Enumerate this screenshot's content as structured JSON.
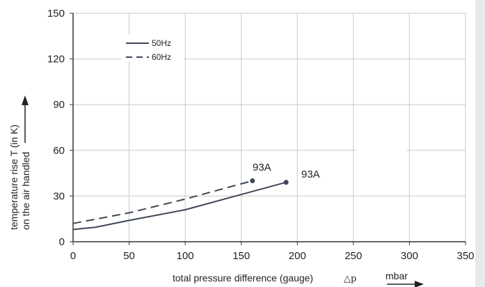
{
  "chart_data": {
    "type": "line",
    "xlabel": "total pressure difference (gauge)",
    "xlabel_symbol": "△p",
    "xunit": "mbar",
    "ylabel_line1": "temperature rise T (in K)",
    "ylabel_line2": "on the air handled",
    "xlim": [
      0,
      350
    ],
    "ylim": [
      0,
      150
    ],
    "xticks": [
      0,
      50,
      100,
      150,
      200,
      250,
      300,
      350
    ],
    "yticks": [
      0,
      30,
      60,
      90,
      120,
      150
    ],
    "grid": true,
    "legend_position": "top-left",
    "series": [
      {
        "name": "50Hz",
        "style": "solid",
        "color": "#3d4654",
        "x": [
          0,
          20,
          50,
          100,
          150,
          190
        ],
        "y": [
          8,
          9.5,
          14,
          21,
          31,
          39
        ],
        "end_label": "93A"
      },
      {
        "name": "60Hz",
        "style": "dashed",
        "color": "#3d4654",
        "x": [
          0,
          50,
          100,
          160
        ],
        "y": [
          12,
          19,
          28,
          40
        ],
        "end_label": "93A"
      }
    ]
  }
}
